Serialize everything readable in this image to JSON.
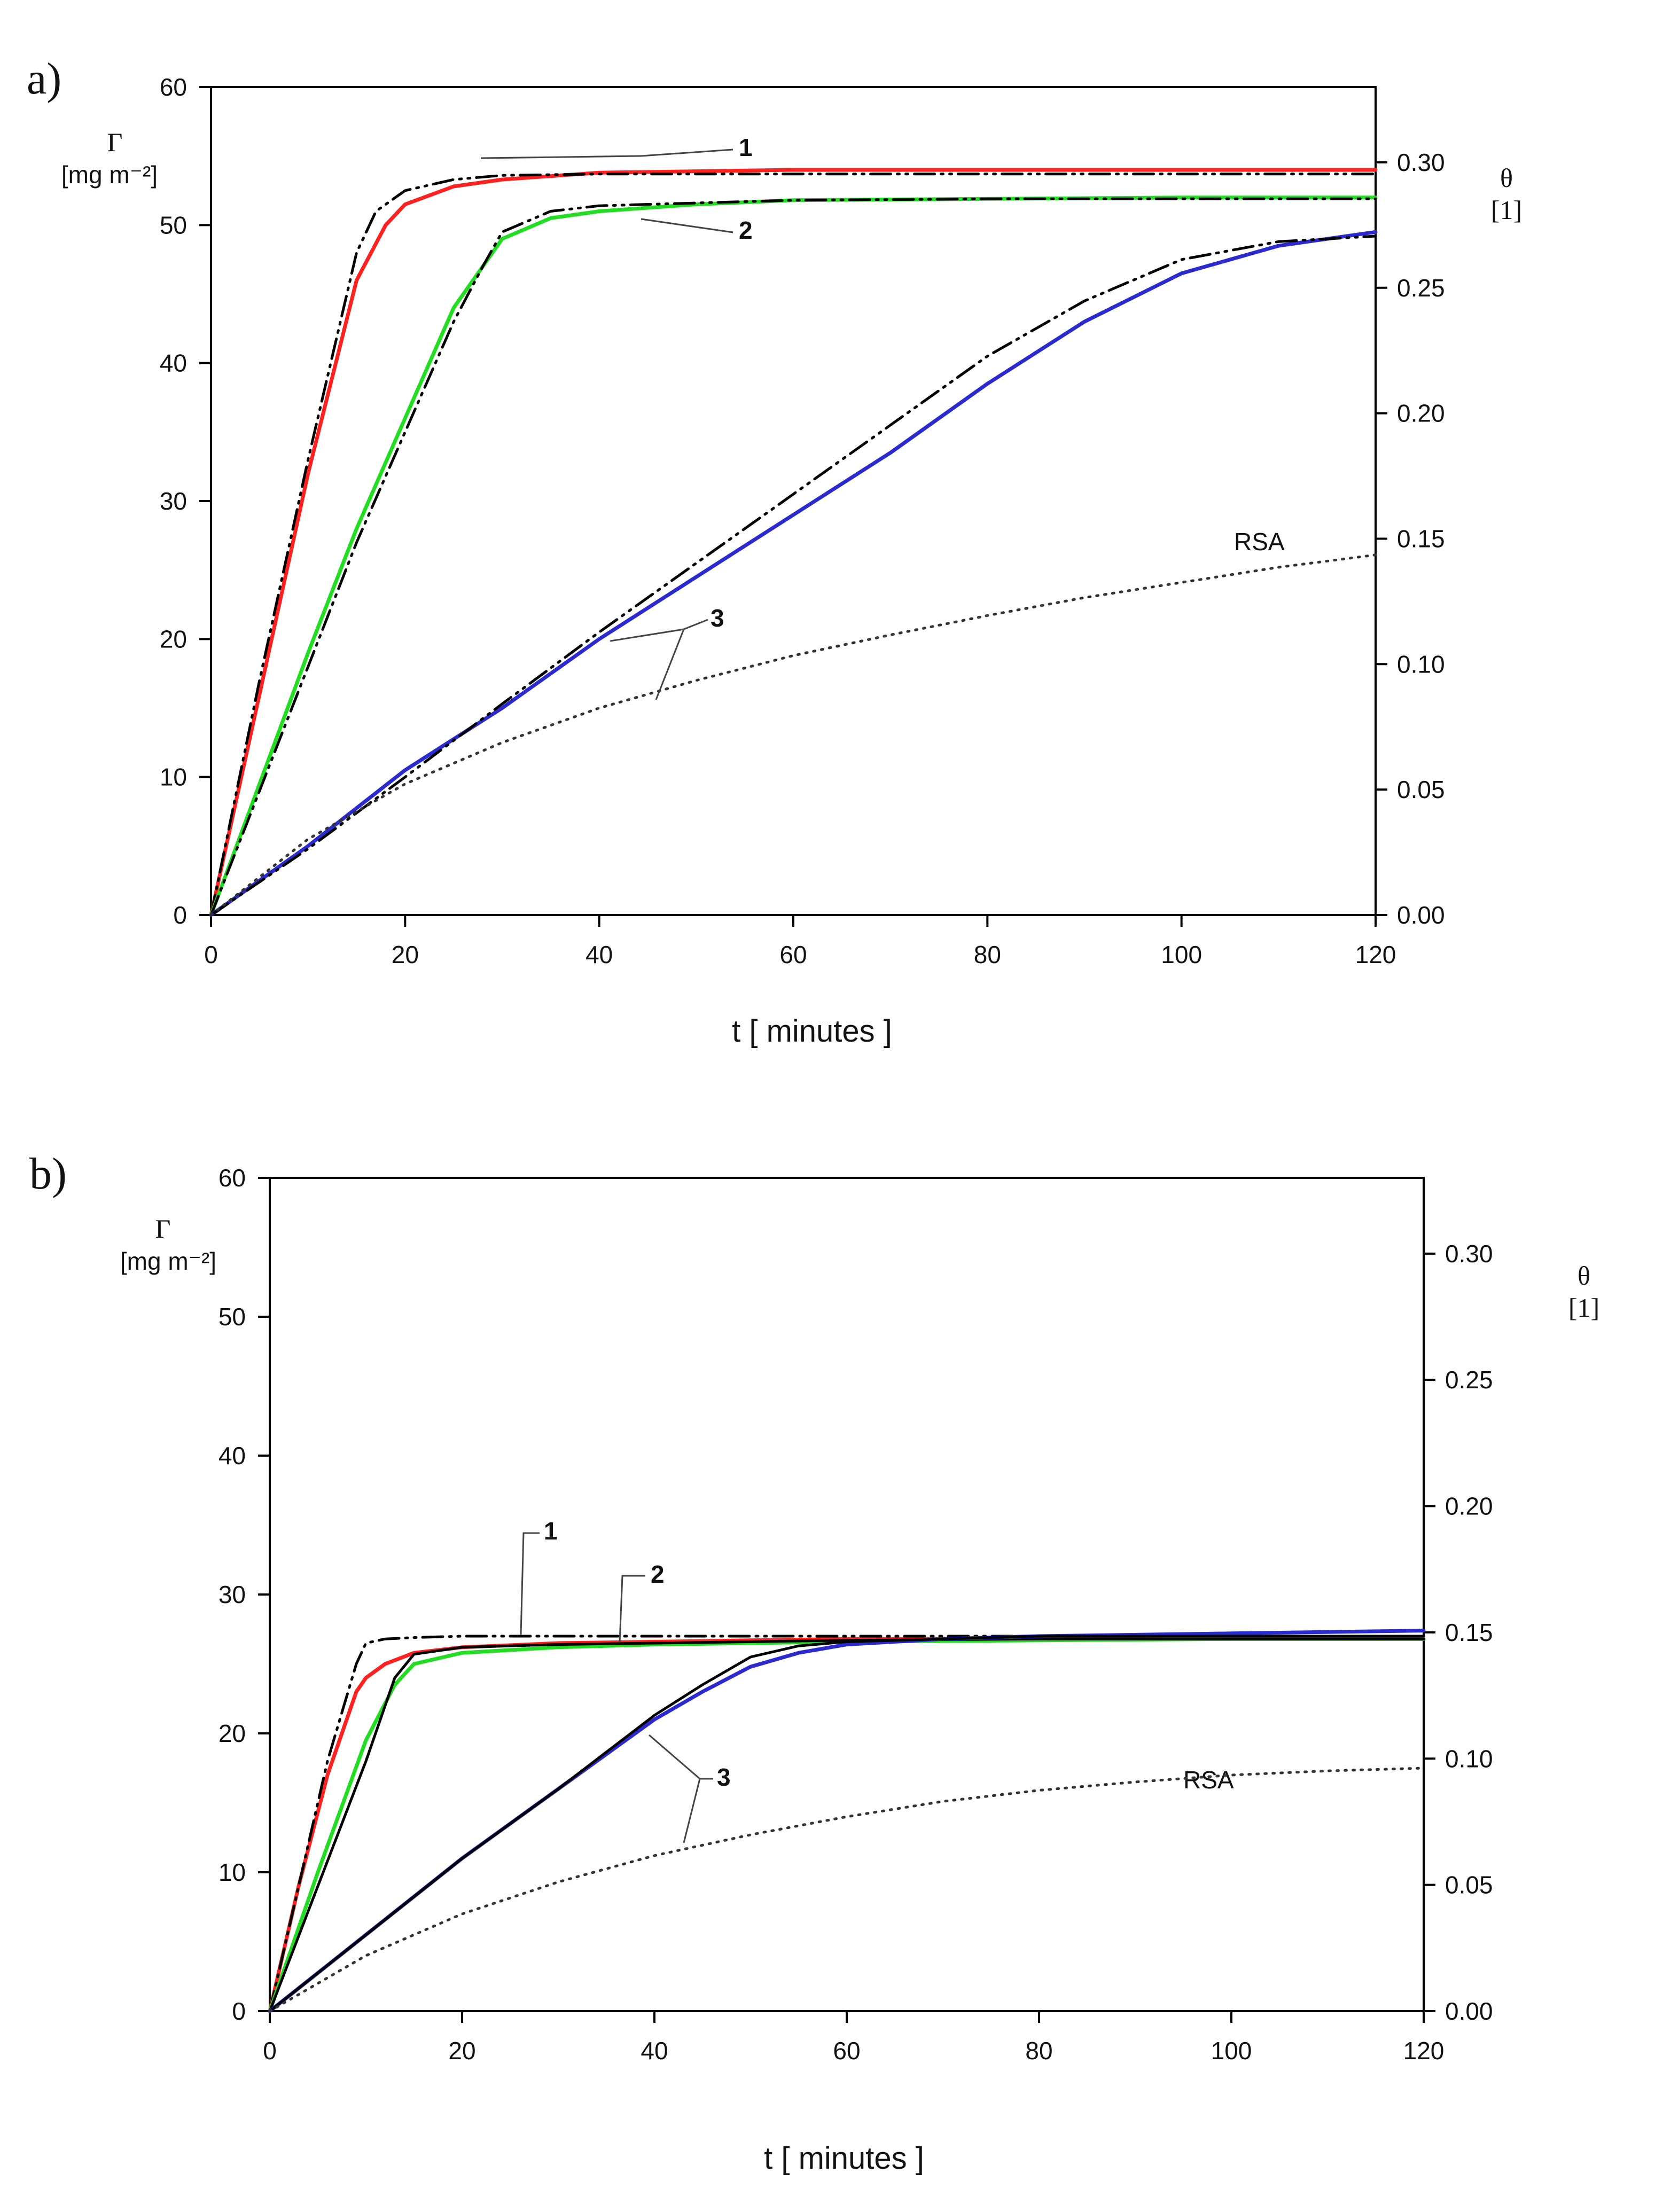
{
  "chart_data": [
    {
      "type": "line",
      "panel": "a)",
      "xlabel": "t [ minutes ]",
      "ylabel_symbol": "Γ",
      "ylabel_unit": "[mg m⁻²]",
      "y2label_symbol": "θ",
      "y2label_unit": "[1]",
      "xlim": [
        0,
        120
      ],
      "ylim": [
        0,
        60
      ],
      "y2lim": [
        0,
        0.33
      ],
      "xticks": [
        "0",
        "20",
        "40",
        "60",
        "80",
        "100",
        "120"
      ],
      "yticks": [
        "0",
        "10",
        "20",
        "30",
        "40",
        "50",
        "60"
      ],
      "y2ticks": [
        "0.00",
        "0.05",
        "0.10",
        "0.15",
        "0.20",
        "0.25",
        "0.30"
      ],
      "curve_labels": [
        "1",
        "2",
        "3"
      ],
      "rsa_label": "RSA",
      "series": [
        {
          "name": "1",
          "color": "#ff2020",
          "x": [
            0,
            5,
            10,
            15,
            18,
            20,
            25,
            30,
            40,
            60,
            80,
            100,
            120
          ],
          "y": [
            0,
            16,
            32,
            46,
            50,
            51.5,
            52.8,
            53.3,
            53.8,
            54,
            54,
            54,
            54
          ]
        },
        {
          "name": "1-fit",
          "color": "#000000",
          "dash": "dashdot",
          "x": [
            0,
            5,
            10,
            15,
            17,
            20,
            25,
            30,
            40,
            60,
            80,
            100,
            120
          ],
          "y": [
            0,
            17,
            33,
            48,
            51,
            52.5,
            53.3,
            53.6,
            53.7,
            53.7,
            53.7,
            53.7,
            53.7
          ]
        },
        {
          "name": "2",
          "color": "#22dd22",
          "x": [
            0,
            5,
            10,
            15,
            20,
            25,
            28,
            30,
            35,
            40,
            50,
            60,
            80,
            100,
            120
          ],
          "y": [
            0,
            9.5,
            19,
            28,
            36,
            44,
            47,
            49,
            50.5,
            51,
            51.5,
            51.8,
            51.9,
            52,
            52
          ]
        },
        {
          "name": "2-fit",
          "color": "#000000",
          "dash": "dashdot",
          "x": [
            0,
            5,
            10,
            15,
            20,
            25,
            28,
            30,
            35,
            40,
            50,
            60,
            80,
            100,
            120
          ],
          "y": [
            0,
            9,
            18,
            27,
            35,
            43,
            47,
            49.5,
            51,
            51.4,
            51.6,
            51.8,
            51.9,
            51.9,
            51.9
          ]
        },
        {
          "name": "3",
          "color": "#2a2ad0",
          "x": [
            0,
            10,
            20,
            30,
            40,
            50,
            60,
            70,
            80,
            90,
            100,
            110,
            120
          ],
          "y": [
            0,
            5,
            10.5,
            15,
            20,
            24.5,
            29,
            33.5,
            38.5,
            43,
            46.5,
            48.5,
            49.5
          ]
        },
        {
          "name": "3-fit",
          "color": "#000000",
          "dash": "dashdot",
          "x": [
            0,
            10,
            20,
            30,
            40,
            50,
            60,
            70,
            80,
            90,
            100,
            110,
            115,
            120
          ],
          "y": [
            0,
            4.8,
            10,
            15.3,
            20.5,
            25.5,
            30.5,
            35.5,
            40.5,
            44.5,
            47.5,
            48.8,
            49,
            49.2
          ]
        },
        {
          "name": "RSA",
          "color": "#333333",
          "dash": "dotted",
          "x": [
            0,
            10,
            20,
            30,
            40,
            50,
            60,
            70,
            80,
            90,
            100,
            110,
            120
          ],
          "y": [
            0,
            5.5,
            9.5,
            12.5,
            15,
            17,
            18.8,
            20.3,
            21.7,
            23,
            24.1,
            25.2,
            26.1
          ]
        }
      ]
    },
    {
      "type": "line",
      "panel": "b)",
      "xlabel": "t [ minutes ]",
      "ylabel_symbol": "Γ",
      "ylabel_unit": "[mg m⁻²]",
      "y2label_symbol": "θ",
      "y2label_unit": "[1]",
      "xlim": [
        0,
        120
      ],
      "ylim": [
        0,
        60
      ],
      "y2lim": [
        0,
        0.33
      ],
      "xticks": [
        "0",
        "20",
        "40",
        "60",
        "80",
        "100",
        "120"
      ],
      "yticks": [
        "0",
        "10",
        "20",
        "30",
        "40",
        "50",
        "60"
      ],
      "y2ticks": [
        "0.00",
        "0.05",
        "0.10",
        "0.15",
        "0.20",
        "0.25",
        "0.30"
      ],
      "curve_labels": [
        "1",
        "2",
        "3"
      ],
      "rsa_label": "RSA",
      "series": [
        {
          "name": "1",
          "color": "#ff2020",
          "x": [
            0,
            3,
            6,
            9,
            10,
            12,
            15,
            20,
            30,
            40,
            60,
            80,
            100,
            120
          ],
          "y": [
            0,
            9,
            17,
            23,
            24,
            25,
            25.8,
            26.2,
            26.5,
            26.6,
            26.8,
            26.8,
            26.8,
            26.8
          ]
        },
        {
          "name": "1-fit",
          "color": "#000000",
          "dash": "dashdot",
          "x": [
            0,
            3,
            6,
            9,
            10,
            12,
            15,
            20,
            30,
            40,
            60,
            80,
            100,
            120
          ],
          "y": [
            0,
            9,
            18,
            25,
            26.5,
            26.8,
            26.9,
            27,
            27,
            27,
            27,
            27,
            27,
            27
          ]
        },
        {
          "name": "2",
          "color": "#22dd22",
          "x": [
            0,
            5,
            10,
            13,
            15,
            20,
            30,
            40,
            60,
            80,
            100,
            120
          ],
          "y": [
            0,
            10,
            19.5,
            23.5,
            25,
            25.8,
            26.2,
            26.4,
            26.6,
            26.7,
            26.8,
            26.8
          ]
        },
        {
          "name": "2-fit",
          "color": "#000000",
          "dash": "solid",
          "x": [
            0,
            5,
            10,
            13,
            15,
            20,
            30,
            40,
            60,
            80,
            100,
            120
          ],
          "y": [
            0,
            9,
            18,
            24,
            25.7,
            26.2,
            26.4,
            26.5,
            26.7,
            26.8,
            26.8,
            26.8
          ]
        },
        {
          "name": "3",
          "color": "#2a2ad0",
          "x": [
            0,
            10,
            20,
            30,
            40,
            45,
            50,
            55,
            60,
            70,
            80,
            100,
            120
          ],
          "y": [
            0,
            5.5,
            11,
            16,
            21,
            23,
            24.8,
            25.8,
            26.4,
            26.8,
            27,
            27.2,
            27.4
          ]
        },
        {
          "name": "3-fit",
          "color": "#000000",
          "dash": "solid",
          "x": [
            0,
            10,
            20,
            30,
            40,
            45,
            50,
            55,
            60,
            70,
            80,
            100,
            120
          ],
          "y": [
            0,
            5.5,
            11,
            16,
            21.3,
            23.5,
            25.5,
            26.3,
            26.6,
            26.8,
            27,
            27,
            27
          ]
        },
        {
          "name": "RSA",
          "color": "#333333",
          "dash": "dotted",
          "x": [
            0,
            10,
            20,
            30,
            40,
            50,
            60,
            70,
            80,
            90,
            100,
            110,
            120
          ],
          "y": [
            0,
            4,
            7,
            9.3,
            11.2,
            12.7,
            14,
            15.1,
            15.9,
            16.5,
            17,
            17.3,
            17.5
          ]
        }
      ]
    }
  ]
}
